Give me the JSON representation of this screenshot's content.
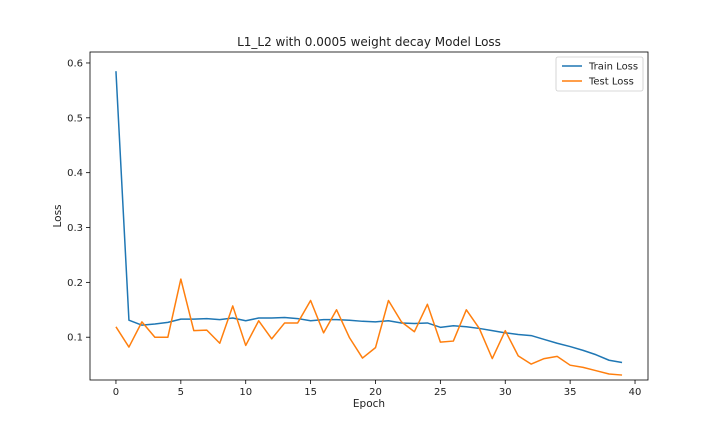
{
  "chart_data": {
    "type": "line",
    "title": "L1_L2 with 0.0005 weight decay Model Loss",
    "xlabel": "Epoch",
    "ylabel": "Loss",
    "xlim": [
      -2,
      41
    ],
    "ylim": [
      0.022,
      0.62
    ],
    "xticks": [
      0,
      5,
      10,
      15,
      20,
      25,
      30,
      35,
      40
    ],
    "yticks": [
      0.1,
      0.2,
      0.3,
      0.4,
      0.5,
      0.6
    ],
    "grid": false,
    "legend_position": "top-right",
    "x": [
      0,
      1,
      2,
      3,
      4,
      5,
      6,
      7,
      8,
      9,
      10,
      11,
      12,
      13,
      14,
      15,
      16,
      17,
      18,
      19,
      20,
      21,
      22,
      23,
      24,
      25,
      26,
      27,
      28,
      29,
      30,
      31,
      32,
      33,
      34,
      35,
      36,
      37,
      38,
      39
    ],
    "series": [
      {
        "name": "Train Loss",
        "color": "#1f77b4",
        "values": [
          0.585,
          0.131,
          0.122,
          0.124,
          0.127,
          0.133,
          0.133,
          0.134,
          0.132,
          0.135,
          0.13,
          0.135,
          0.135,
          0.136,
          0.134,
          0.13,
          0.132,
          0.132,
          0.131,
          0.129,
          0.128,
          0.13,
          0.126,
          0.125,
          0.126,
          0.118,
          0.121,
          0.119,
          0.116,
          0.112,
          0.108,
          0.105,
          0.103,
          0.096,
          0.089,
          0.083,
          0.076,
          0.068,
          0.058,
          0.054
        ]
      },
      {
        "name": "Test Loss",
        "color": "#ff7f0e",
        "values": [
          0.119,
          0.082,
          0.128,
          0.1,
          0.1,
          0.206,
          0.112,
          0.113,
          0.089,
          0.157,
          0.085,
          0.13,
          0.097,
          0.126,
          0.126,
          0.167,
          0.108,
          0.15,
          0.099,
          0.062,
          0.081,
          0.167,
          0.128,
          0.11,
          0.16,
          0.091,
          0.093,
          0.15,
          0.116,
          0.061,
          0.112,
          0.066,
          0.051,
          0.061,
          0.065,
          0.049,
          0.045,
          0.039,
          0.033,
          0.031
        ]
      }
    ]
  }
}
